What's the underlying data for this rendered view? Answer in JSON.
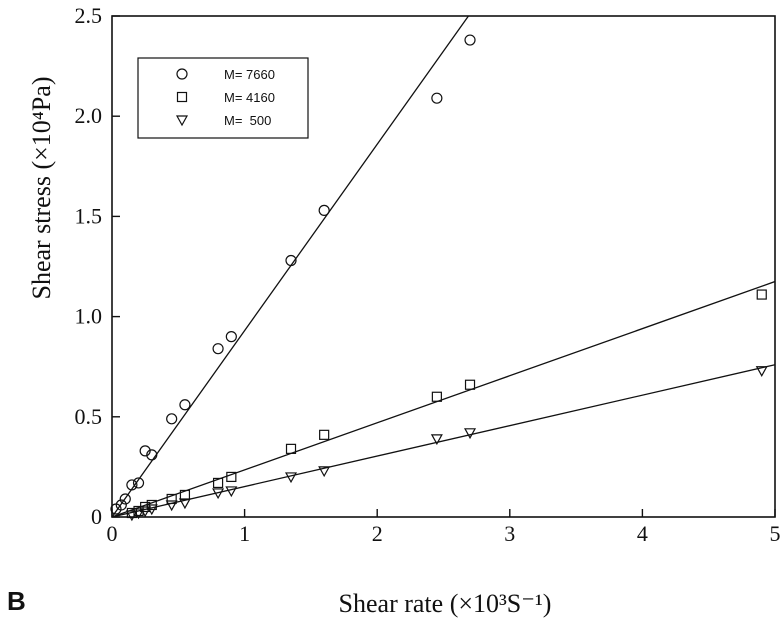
{
  "panel_label": "B",
  "chart_data": {
    "type": "scatter",
    "xlabel": "Shear rate (×10³S⁻¹)",
    "ylabel": "Shear stress (×10⁴Pa)",
    "xlim": [
      0,
      5
    ],
    "ylim": [
      0,
      2.5
    ],
    "x_ticks": [
      "0",
      "1",
      "2",
      "3",
      "4",
      "5"
    ],
    "y_ticks": [
      "0",
      "0.5",
      "1.0",
      "1.5",
      "2.0",
      "2.5"
    ],
    "grid": false,
    "legend_position": "top-left",
    "series": [
      {
        "name": "M= 7660",
        "marker": "circle",
        "fit_slope": 0.93,
        "points": [
          [
            0.03,
            0.04
          ],
          [
            0.07,
            0.06
          ],
          [
            0.1,
            0.09
          ],
          [
            0.15,
            0.16
          ],
          [
            0.2,
            0.17
          ],
          [
            0.25,
            0.33
          ],
          [
            0.3,
            0.31
          ],
          [
            0.45,
            0.49
          ],
          [
            0.55,
            0.56
          ],
          [
            0.8,
            0.84
          ],
          [
            0.9,
            0.9
          ],
          [
            1.35,
            1.28
          ],
          [
            1.6,
            1.53
          ],
          [
            2.45,
            2.09
          ],
          [
            2.7,
            2.38
          ]
        ]
      },
      {
        "name": "M= 4160",
        "marker": "square",
        "fit_slope": 0.235,
        "points": [
          [
            0.15,
            0.02
          ],
          [
            0.2,
            0.03
          ],
          [
            0.25,
            0.05
          ],
          [
            0.3,
            0.06
          ],
          [
            0.45,
            0.09
          ],
          [
            0.55,
            0.11
          ],
          [
            0.8,
            0.17
          ],
          [
            0.9,
            0.2
          ],
          [
            1.35,
            0.34
          ],
          [
            1.6,
            0.41
          ],
          [
            2.45,
            0.6
          ],
          [
            2.7,
            0.66
          ],
          [
            4.9,
            1.11
          ]
        ]
      },
      {
        "name": "M=  500",
        "marker": "triangle-down",
        "fit_slope": 0.152,
        "points": [
          [
            0.15,
            0.01
          ],
          [
            0.2,
            0.02
          ],
          [
            0.25,
            0.03
          ],
          [
            0.3,
            0.04
          ],
          [
            0.45,
            0.06
          ],
          [
            0.55,
            0.07
          ],
          [
            0.8,
            0.12
          ],
          [
            0.9,
            0.13
          ],
          [
            1.35,
            0.2
          ],
          [
            1.6,
            0.23
          ],
          [
            2.45,
            0.39
          ],
          [
            2.7,
            0.42
          ],
          [
            4.9,
            0.73
          ]
        ]
      }
    ]
  }
}
